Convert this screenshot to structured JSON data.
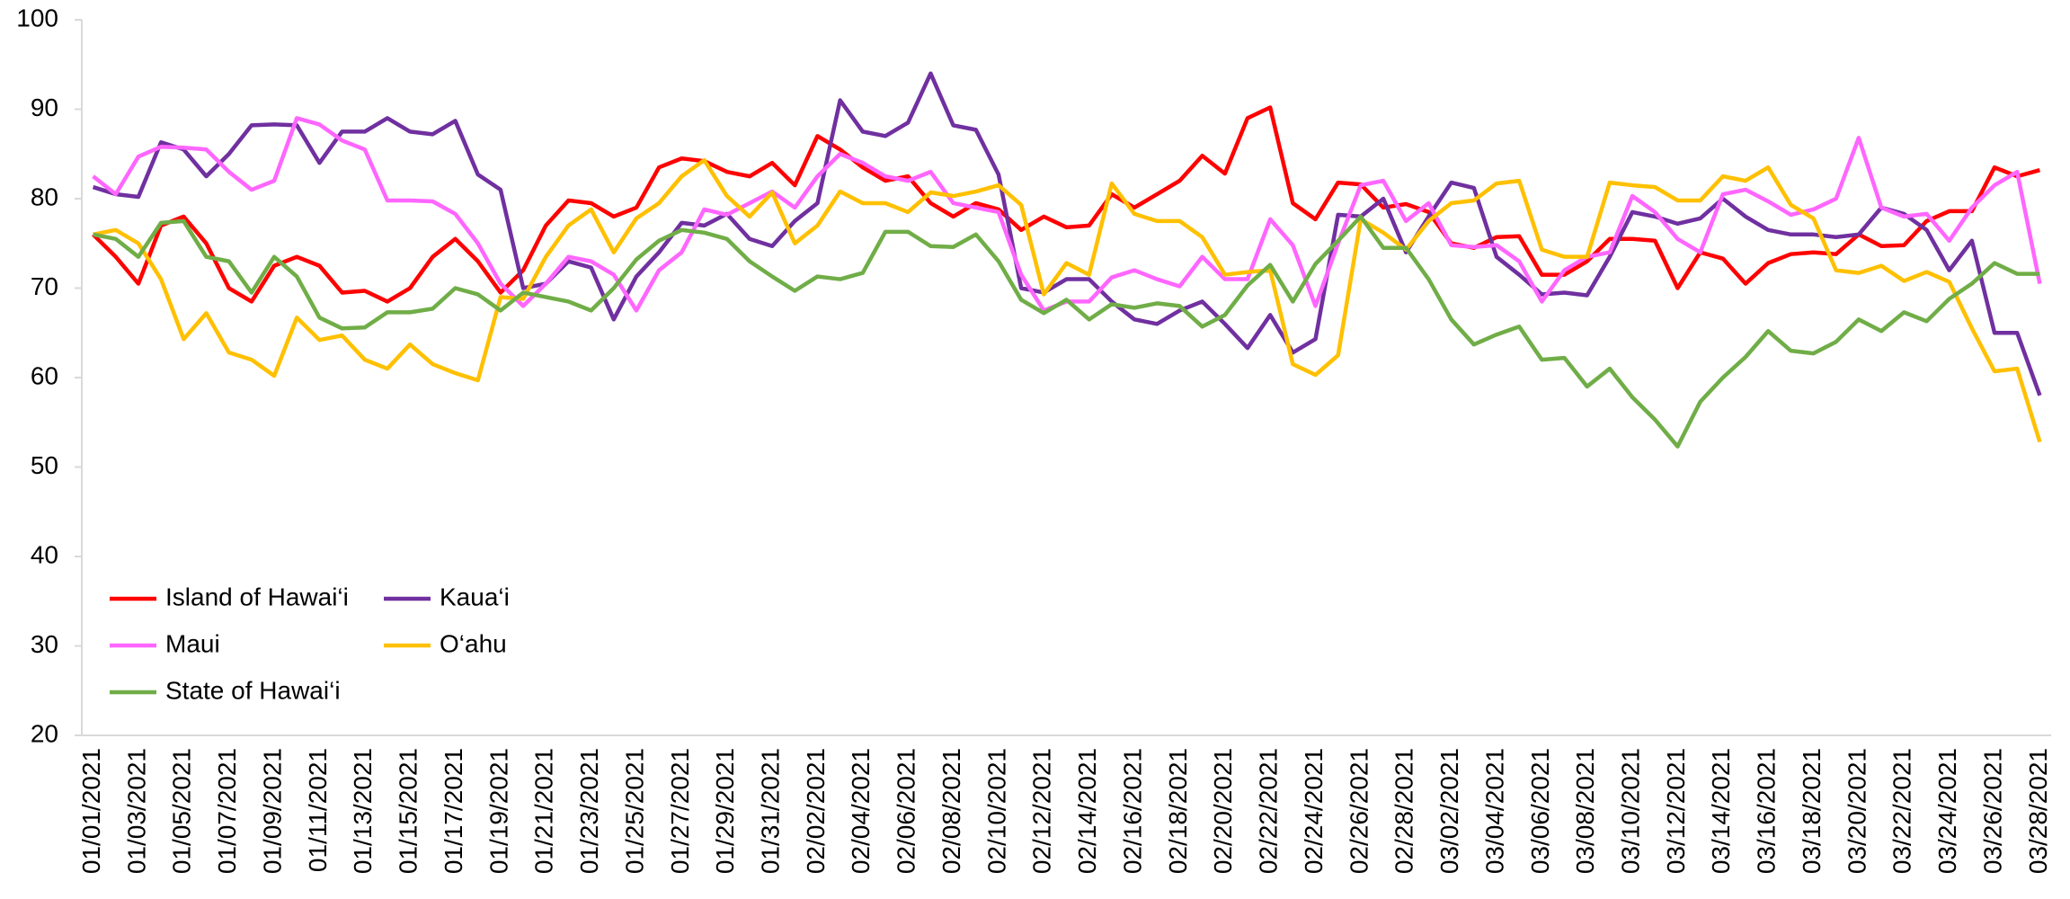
{
  "chart_data": {
    "type": "line",
    "categories": [
      "01/01/2021",
      null,
      "01/03/2021",
      null,
      "01/05/2021",
      null,
      "01/07/2021",
      null,
      "01/09/2021",
      null,
      "01/11/2021",
      null,
      "01/13/2021",
      null,
      "01/15/2021",
      null,
      "01/17/2021",
      null,
      "01/19/2021",
      null,
      "01/21/2021",
      null,
      "01/23/2021",
      null,
      "01/25/2021",
      null,
      "01/27/2021",
      null,
      "01/29/2021",
      null,
      "01/31/2021",
      null,
      "02/02/2021",
      null,
      "02/04/2021",
      null,
      "02/06/2021",
      null,
      "02/08/2021",
      null,
      "02/10/2021",
      null,
      "02/12/2021",
      null,
      "02/14/2021",
      null,
      "02/16/2021",
      null,
      "02/18/2021",
      null,
      "02/20/2021",
      null,
      "02/22/2021",
      null,
      "02/24/2021",
      null,
      "02/26/2021",
      null,
      "02/28/2021",
      null,
      "03/02/2021",
      null,
      "03/04/2021",
      null,
      "03/06/2021",
      null,
      "03/08/2021",
      null,
      "03/10/2021",
      null,
      "03/12/2021",
      null,
      "03/14/2021",
      null,
      "03/16/2021",
      null,
      "03/18/2021",
      null,
      "03/20/2021",
      null,
      "03/22/2021",
      null,
      "03/24/2021",
      null,
      "03/26/2021",
      null,
      "03/28/2021"
    ],
    "series": [
      {
        "name": "Island of Hawai‘i",
        "color": "#ff0000",
        "values": [
          76,
          73.5,
          70.5,
          77,
          78,
          75,
          70,
          68.5,
          72.5,
          73.5,
          72.5,
          69.5,
          69.7,
          68.5,
          70,
          73.5,
          75.5,
          73,
          69.5,
          72,
          77,
          79.8,
          79.5,
          78,
          79,
          83.5,
          84.5,
          84.2,
          83,
          82.5,
          84,
          81.5,
          87,
          85.5,
          83.5,
          82,
          82.5,
          79.5,
          78,
          79.5,
          78.8,
          76.5,
          78,
          76.8,
          77,
          80.5,
          79,
          80.5,
          82,
          84.8,
          82.8,
          89,
          90.2,
          79.5,
          77.7,
          81.8,
          81.6,
          79,
          79.4,
          78.5,
          75,
          74.5,
          75.7,
          75.8,
          71.5,
          71.5,
          73,
          75.5,
          75.5,
          75.3,
          70,
          74,
          73.3,
          70.5,
          72.8,
          73.8,
          74,
          73.8,
          76,
          74.7,
          74.8,
          77.5,
          78.6,
          78.6,
          83.5,
          82.5,
          83.2
        ]
      },
      {
        "name": "Kaua‘i",
        "color": "#7030a0",
        "values": [
          81.3,
          80.5,
          80.2,
          86.3,
          85.5,
          82.5,
          85,
          88.2,
          88.3,
          88.2,
          84,
          87.5,
          87.5,
          89,
          87.5,
          87.2,
          88.7,
          82.7,
          81,
          70,
          70.5,
          73,
          72.3,
          66.5,
          71.3,
          74,
          77.3,
          77,
          78.3,
          75.5,
          74.7,
          77.5,
          79.5,
          91,
          87.5,
          87,
          88.5,
          94,
          88.2,
          87.7,
          82.7,
          70,
          69.5,
          71,
          71,
          68.5,
          66.5,
          66,
          67.5,
          68.5,
          66,
          63.3,
          67,
          62.8,
          64.3,
          78.2,
          78,
          80,
          74,
          78,
          81.8,
          81.2,
          73.5,
          71.5,
          69.3,
          69.5,
          69.2,
          73.5,
          78.5,
          78,
          77.2,
          77.8,
          80,
          78,
          76.5,
          76,
          76,
          75.7,
          76,
          79,
          78.3,
          76.5,
          72,
          75.3,
          65,
          65,
          58
        ]
      },
      {
        "name": "Maui",
        "color": "#ff66ff",
        "values": [
          82.5,
          80.5,
          84.7,
          85.8,
          85.7,
          85.5,
          83,
          81,
          82,
          89,
          88.3,
          86.5,
          85.5,
          79.8,
          79.8,
          79.7,
          78.3,
          75,
          70.5,
          68,
          70.5,
          73.5,
          73,
          71.5,
          67.5,
          72,
          74,
          78.8,
          78.2,
          79.5,
          80.8,
          79,
          82.5,
          85,
          84,
          82.5,
          82,
          83,
          79.5,
          79,
          78.5,
          71.5,
          67.5,
          68.5,
          68.5,
          71.2,
          72,
          71,
          70.2,
          73.5,
          71,
          71,
          77.7,
          74.8,
          68,
          75,
          81.5,
          82,
          77.5,
          79.5,
          74.8,
          74.6,
          74.8,
          73,
          68.5,
          72,
          73.5,
          74,
          80.3,
          78.5,
          75.5,
          74,
          80.5,
          81,
          79.7,
          78.2,
          78.8,
          80,
          86.8,
          79,
          78,
          78.3,
          75.3,
          79,
          81.5,
          83,
          70.5
        ]
      },
      {
        "name": "O‘ahu",
        "color": "#ffc000",
        "values": [
          76,
          76.5,
          75,
          71,
          64.3,
          67.2,
          62.8,
          62,
          60.2,
          66.7,
          64.2,
          64.7,
          62,
          61,
          63.7,
          61.5,
          60.5,
          59.7,
          69,
          68.8,
          73.5,
          77,
          78.8,
          74,
          77.8,
          79.5,
          82.5,
          84.3,
          80.3,
          78,
          80.7,
          75,
          77,
          80.8,
          79.5,
          79.5,
          78.5,
          80.7,
          80.3,
          80.8,
          81.5,
          79.3,
          69.3,
          72.8,
          71.5,
          81.7,
          78.3,
          77.5,
          77.5,
          75.7,
          71.5,
          71.8,
          72,
          61.5,
          60.3,
          62.5,
          77.7,
          76.2,
          74.3,
          77.5,
          79.5,
          79.8,
          81.7,
          82,
          74.3,
          73.5,
          73.5,
          81.8,
          81.5,
          81.3,
          79.8,
          79.8,
          82.5,
          82,
          83.5,
          79.3,
          77.8,
          72,
          71.7,
          72.5,
          70.8,
          71.8,
          70.7,
          65.5,
          60.7,
          61,
          52.8
        ]
      },
      {
        "name": "State of Hawai‘i",
        "color": "#70ad47",
        "values": [
          76,
          75.5,
          73.5,
          77.3,
          77.5,
          73.5,
          73,
          69.5,
          73.5,
          71.3,
          66.7,
          65.5,
          65.6,
          67.3,
          67.3,
          67.7,
          70,
          69.3,
          67.5,
          69.5,
          69,
          68.5,
          67.5,
          70,
          73.2,
          75.3,
          76.5,
          76.2,
          75.5,
          73,
          71.3,
          69.7,
          71.3,
          71,
          71.7,
          76.3,
          76.3,
          74.7,
          74.6,
          76,
          73,
          68.7,
          67.2,
          68.7,
          66.5,
          68.2,
          67.8,
          68.3,
          68,
          65.7,
          67,
          70.3,
          72.6,
          68.5,
          72.7,
          75.3,
          78,
          74.5,
          74.5,
          71,
          66.5,
          63.7,
          64.8,
          65.7,
          62,
          62.2,
          59,
          61,
          57.8,
          55.3,
          52.3,
          57.3,
          60,
          62.3,
          65.2,
          63,
          62.7,
          64,
          66.5,
          65.2,
          67.3,
          66.3,
          68.8,
          70.5,
          72.8,
          71.6,
          71.6
        ]
      }
    ],
    "ylim": [
      20,
      100
    ],
    "yticks": [
      20,
      30,
      40,
      50,
      60,
      70,
      80,
      90,
      100
    ],
    "grid": false,
    "legend": "lower left"
  }
}
